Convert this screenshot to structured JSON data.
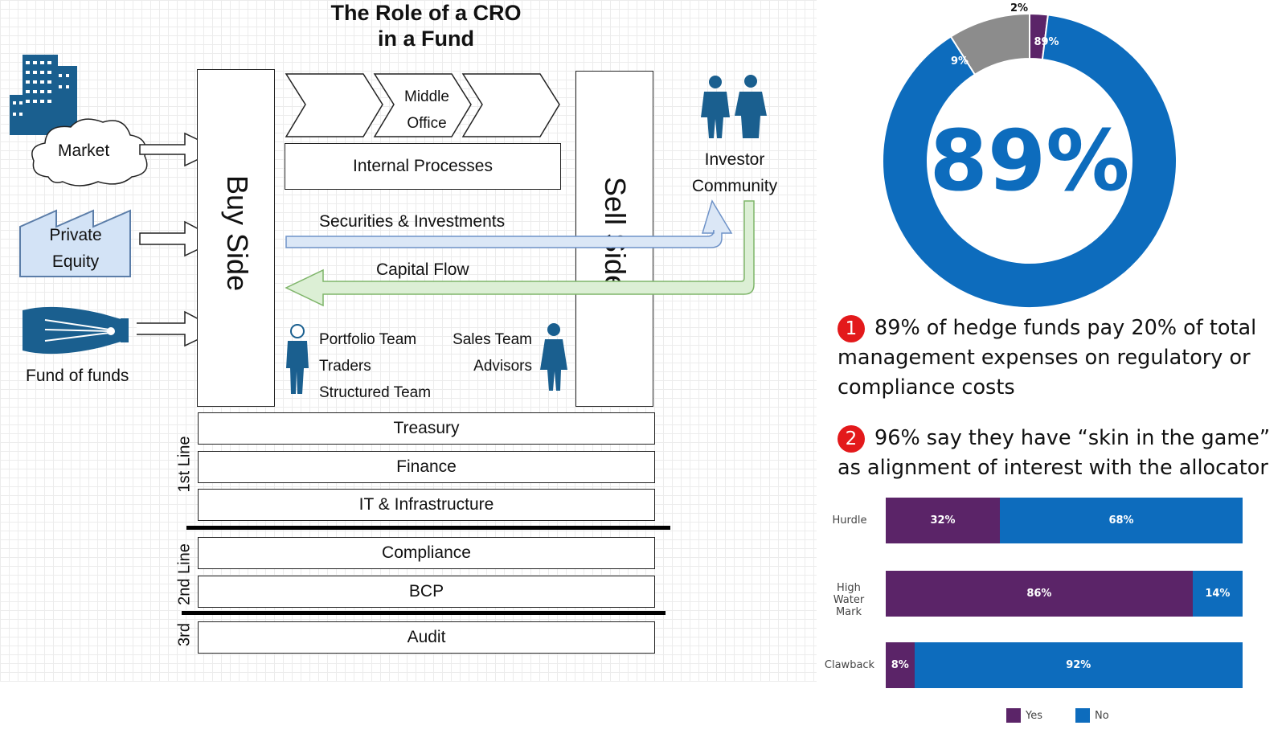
{
  "diagram": {
    "title_line1": "The Role of a CRO",
    "title_line2": "in a Fund",
    "sources": {
      "market": "Market",
      "private_equity_l1": "Private",
      "private_equity_l2": "Equity",
      "fund_of_funds": "Fund of funds"
    },
    "buy_side": "Buy Side",
    "sell_side": "Sell Side",
    "middle_office_l1": "Middle",
    "middle_office_l2": "Office",
    "internal_processes": "Internal Processes",
    "securities_flow": "Securities & Investments",
    "capital_flow": "Capital Flow",
    "investor_l1": "Investor",
    "investor_l2": "Community",
    "buy_teams": [
      "Portfolio Team",
      "Traders",
      "Structured Team"
    ],
    "sell_teams": [
      "Sales Team",
      "Advisors"
    ],
    "lines": {
      "first": {
        "label": "1st Line",
        "boxes": [
          "Treasury",
          "Finance",
          "IT & Infrastructure"
        ]
      },
      "second": {
        "label": "2nd Line",
        "boxes": [
          "Compliance",
          "BCP"
        ]
      },
      "third": {
        "label": "3rd",
        "boxes": [
          "Audit"
        ]
      }
    },
    "colors": {
      "blue_dark": "#1a5f8f",
      "flow_blue": "#dbe7f6",
      "flow_green": "#dcefd5",
      "pe_fill": "#d3e3f6"
    }
  },
  "donut": {
    "center_text": "89%",
    "slices": [
      {
        "label": "89%",
        "value": 89,
        "color": "#0d6cbd"
      },
      {
        "label": "9%",
        "value": 9,
        "color": "#8c8c8c"
      },
      {
        "label": "2%",
        "value": 2,
        "color": "#5b2468"
      }
    ]
  },
  "facts": [
    {
      "num": "1",
      "text": "89% of hedge funds pay 20% of total management expenses on regulatory or compliance costs"
    },
    {
      "num": "2",
      "text": "96% say they have “skin in the game” as alignment of interest with the allocator"
    }
  ],
  "chart_data": {
    "type": "bar",
    "stacked": true,
    "orientation": "horizontal",
    "categories": [
      "Hurdle",
      "High Water Mark",
      "Clawback"
    ],
    "series": [
      {
        "name": "Yes",
        "values": [
          32,
          86,
          8
        ],
        "color": "#5b2468"
      },
      {
        "name": "No",
        "values": [
          68,
          14,
          92
        ],
        "color": "#0d6cbd"
      }
    ],
    "legend": "bottom"
  }
}
